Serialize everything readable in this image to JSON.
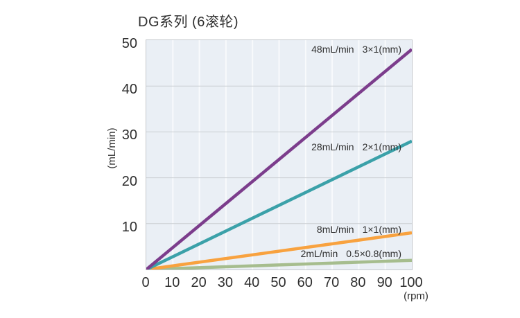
{
  "chart_data": {
    "type": "line",
    "title": "DG系列 (6滚轮)",
    "xlabel": "(rpm)",
    "ylabel": "(mL/min)",
    "xlim": [
      0,
      100
    ],
    "ylim": [
      0,
      50
    ],
    "x_ticks": [
      0,
      10,
      20,
      30,
      40,
      50,
      60,
      70,
      80,
      90,
      100
    ],
    "y_ticks": [
      10,
      20,
      30,
      40,
      50
    ],
    "grid": true,
    "legend_position": "inline-right",
    "plot_bg_color": "#eaeff5",
    "h_grid_color": "#c9cdd2",
    "v_grid_color": "#f8fafc",
    "series": [
      {
        "name": "48mL/min",
        "tube_size": "3×1(mm)",
        "color": "#7c3d8c",
        "x": [
          0,
          100
        ],
        "values": [
          0,
          48
        ]
      },
      {
        "name": "28mL/min",
        "tube_size": "2×1(mm)",
        "color": "#3ba1a9",
        "x": [
          0,
          100
        ],
        "values": [
          0,
          28
        ]
      },
      {
        "name": "8mL/min",
        "tube_size": "1×1(mm)",
        "color": "#f8a23f",
        "x": [
          0,
          100
        ],
        "values": [
          0,
          8
        ]
      },
      {
        "name": "2mL/min",
        "tube_size": "0.5×0.8(mm)",
        "color": "#a6bd8e",
        "x": [
          0,
          100
        ],
        "values": [
          0,
          2
        ]
      }
    ]
  }
}
